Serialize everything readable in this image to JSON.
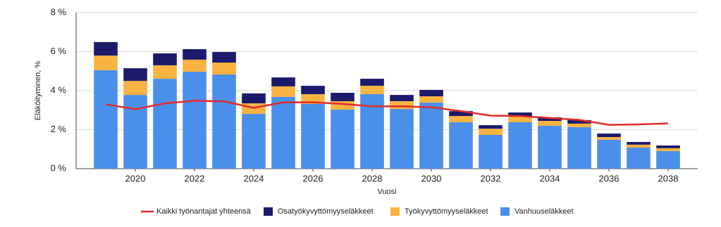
{
  "chart_data": {
    "type": "bar",
    "y_label": "Eläköityminen, %",
    "x_label": "Vuosi",
    "x": [
      2019,
      2020,
      2021,
      2022,
      2023,
      2024,
      2025,
      2026,
      2027,
      2028,
      2029,
      2030,
      2031,
      2032,
      2033,
      2034,
      2035,
      2036,
      2037,
      2038
    ],
    "xlim": [
      2018,
      2039
    ],
    "xticks": [
      2020,
      2022,
      2024,
      2026,
      2028,
      2030,
      2032,
      2034,
      2036,
      2038
    ],
    "ylim": [
      0,
      8
    ],
    "yticks": [
      {
        "value": 0,
        "label": "0 %"
      },
      {
        "value": 2,
        "label": "2 %"
      },
      {
        "value": 4,
        "label": "4 %"
      },
      {
        "value": 6,
        "label": "6 %"
      },
      {
        "value": 8,
        "label": "8 %"
      }
    ],
    "grid": true,
    "stacked": true,
    "series": [
      {
        "name": "Kaikki työnantajat yhteensä",
        "type": "line",
        "color": "#e32a2a",
        "values": [
          3.3,
          3.05,
          3.35,
          3.48,
          3.45,
          3.12,
          3.4,
          3.4,
          3.32,
          3.2,
          3.2,
          3.15,
          2.95,
          2.72,
          2.7,
          2.6,
          2.5,
          2.25,
          2.27,
          2.32
        ]
      },
      {
        "name": "Osatyökyvyttömyyseläkkeet",
        "type": "bar",
        "color": "#1c1a6b",
        "values": [
          0.69,
          0.65,
          0.61,
          0.54,
          0.54,
          0.51,
          0.46,
          0.43,
          0.43,
          0.36,
          0.32,
          0.33,
          0.25,
          0.18,
          0.21,
          0.18,
          0.18,
          0.18,
          0.14,
          0.14
        ]
      },
      {
        "name": "Työkyvyttömyyseläkkeet",
        "type": "bar",
        "color": "#f9b340",
        "values": [
          0.75,
          0.72,
          0.69,
          0.62,
          0.61,
          0.54,
          0.54,
          0.5,
          0.43,
          0.43,
          0.4,
          0.32,
          0.32,
          0.32,
          0.29,
          0.25,
          0.18,
          0.14,
          0.15,
          0.15
        ]
      },
      {
        "name": "Vanhuuseläkkeet",
        "type": "bar",
        "color": "#4a8fea",
        "values": [
          5.05,
          3.78,
          4.61,
          4.97,
          4.83,
          2.81,
          3.68,
          3.32,
          3.03,
          3.82,
          3.06,
          3.39,
          2.38,
          1.73,
          2.38,
          2.2,
          2.13,
          1.48,
          1.08,
          0.9
        ]
      }
    ]
  }
}
